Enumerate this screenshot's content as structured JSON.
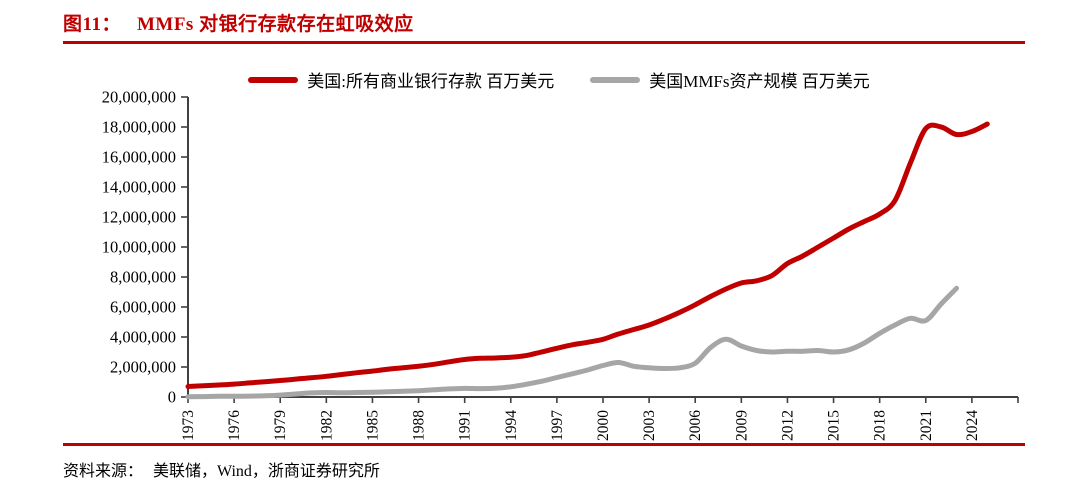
{
  "header": {
    "fig_label": "图11：",
    "title": "MMFs 对银行存款存在虹吸效应"
  },
  "footer": {
    "source_label": "资料来源：",
    "source_text": "美联储，Wind，浙商证券研究所"
  },
  "theme": {
    "accent_red": "#c00000",
    "series_red": "#c00000",
    "series_gray": "#a6a6a6",
    "axis_color": "#404040",
    "text_color": "#000000"
  },
  "chart_data": {
    "type": "line",
    "title": "MMFs 对银行存款存在虹吸效应",
    "unit": "百万美元",
    "grid": false,
    "legend_position": "top",
    "ylim": [
      0,
      20000000
    ],
    "y_tick_step": 2000000,
    "y_tick_labels": [
      "0",
      "2,000,000",
      "4,000,000",
      "6,000,000",
      "8,000,000",
      "10,000,000",
      "12,000,000",
      "14,000,000",
      "16,000,000",
      "18,000,000",
      "20,000,000"
    ],
    "x_start_year": 1973,
    "x_axis_end_year": 2027,
    "x_tick_interval": 3,
    "x_tick_years": [
      1973,
      1976,
      1979,
      1982,
      1985,
      1988,
      1991,
      1994,
      1997,
      2000,
      2003,
      2006,
      2009,
      2012,
      2015,
      2018,
      2021,
      2024
    ],
    "series": [
      {
        "name": "美国:所有商业银行存款 百万美元",
        "color": "#c00000",
        "start_year": 1973,
        "values": [
          700000,
          750000,
          800000,
          860000,
          940000,
          1020000,
          1100000,
          1190000,
          1280000,
          1380000,
          1500000,
          1620000,
          1730000,
          1850000,
          1950000,
          2050000,
          2180000,
          2350000,
          2500000,
          2580000,
          2600000,
          2650000,
          2760000,
          3000000,
          3250000,
          3480000,
          3650000,
          3850000,
          4200000,
          4500000,
          4800000,
          5200000,
          5650000,
          6150000,
          6700000,
          7200000,
          7600000,
          7750000,
          8100000,
          8900000,
          9400000,
          10000000,
          10600000,
          11200000,
          11700000,
          12200000,
          13100000,
          15600000,
          17900000,
          18000000,
          17500000,
          17700000,
          18200000
        ]
      },
      {
        "name": "美国MMFs资产规模 百万美元",
        "color": "#a6a6a6",
        "start_year": 1973,
        "values": [
          20000,
          30000,
          45000,
          50000,
          60000,
          80000,
          130000,
          200000,
          270000,
          300000,
          280000,
          300000,
          320000,
          350000,
          380000,
          420000,
          480000,
          540000,
          570000,
          560000,
          580000,
          680000,
          850000,
          1050000,
          1300000,
          1550000,
          1800000,
          2100000,
          2300000,
          2050000,
          1950000,
          1900000,
          1950000,
          2250000,
          3300000,
          3850000,
          3400000,
          3100000,
          3000000,
          3050000,
          3050000,
          3100000,
          3000000,
          3150000,
          3600000,
          4250000,
          4800000,
          5250000,
          5100000,
          6200000,
          7250000
        ]
      }
    ]
  }
}
